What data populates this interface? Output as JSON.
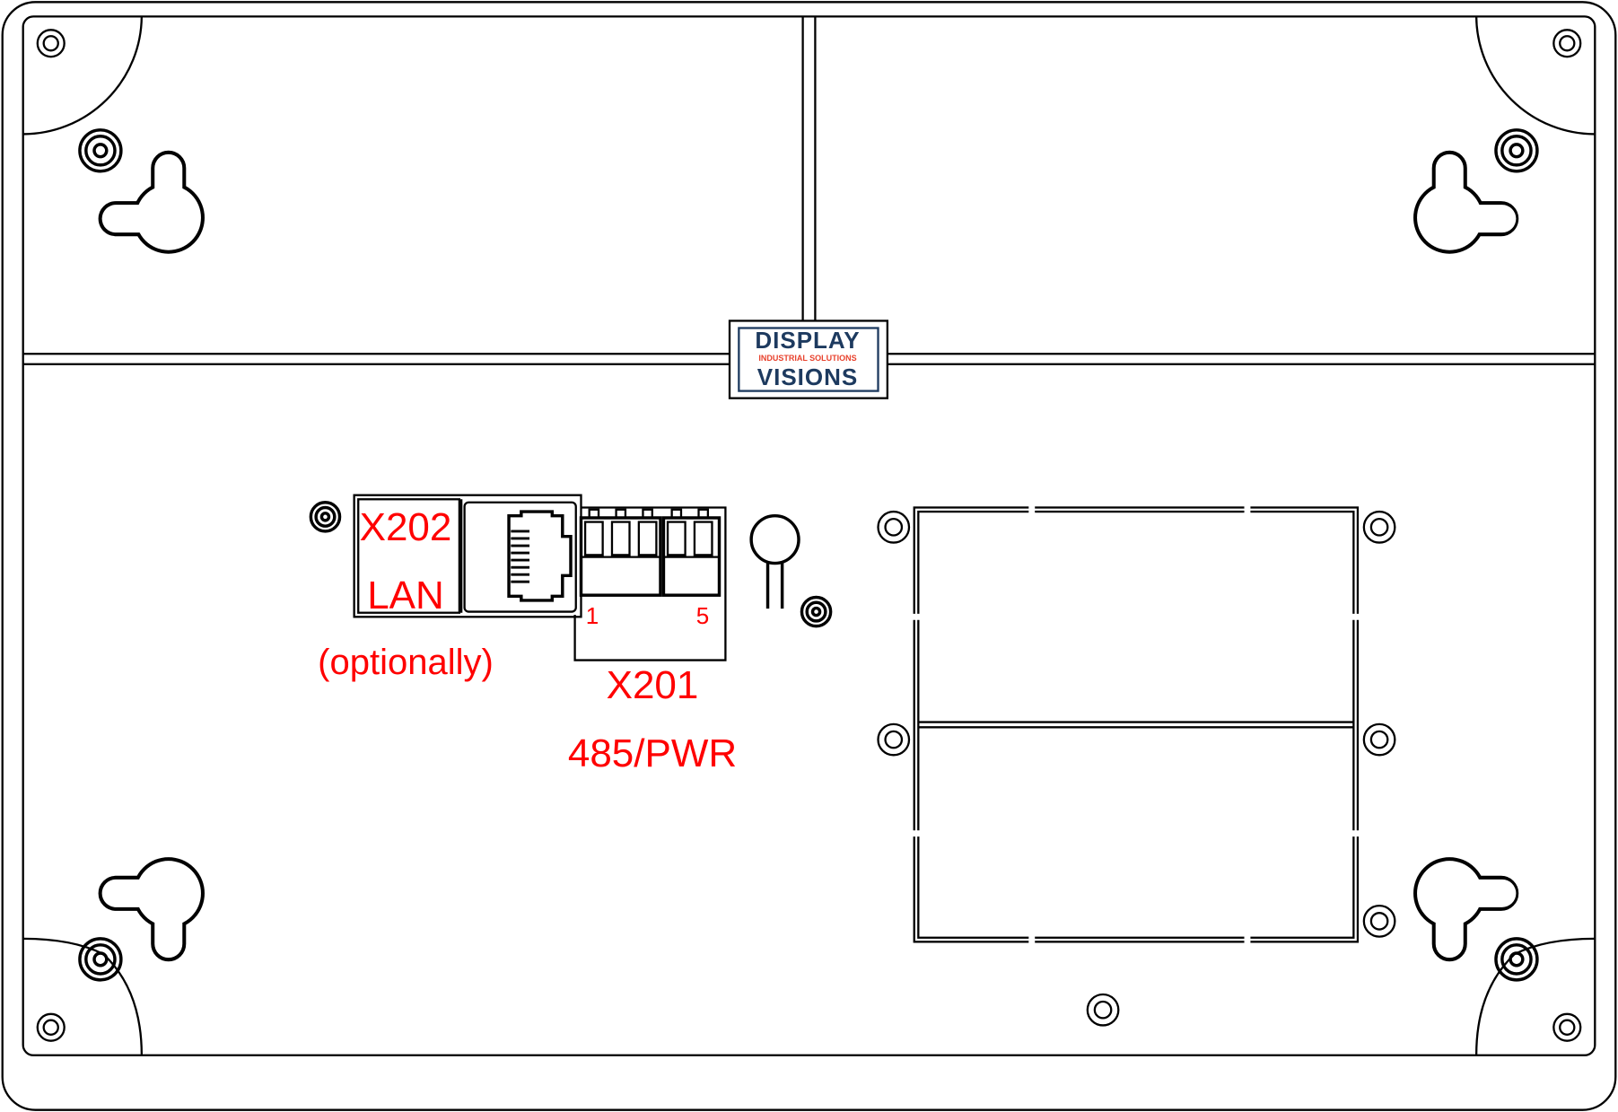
{
  "logo": {
    "line1": "DISPLAY",
    "line2": "INDUSTRIAL SOLUTIONS",
    "line3": "VISIONS",
    "colors": {
      "blue": "#1d3a5f",
      "red": "#e8412c"
    }
  },
  "labels": {
    "x202": "X202",
    "lan": "LAN",
    "optional": "(optionally)",
    "pin_first": "1",
    "pin_last": "5",
    "x201": "X201",
    "x201_desc": "485/PWR"
  },
  "colors": {
    "label": "#ff0000",
    "line": "#000000"
  },
  "icons": [
    "torx-screw-icon",
    "ring-screw-icon",
    "keyhole-icon",
    "rj45-jack-icon",
    "terminal-block-icon"
  ]
}
